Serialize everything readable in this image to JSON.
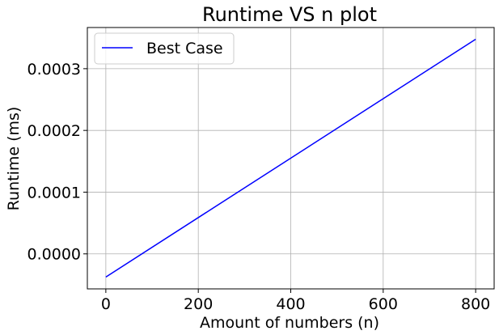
{
  "chart_data": {
    "type": "line",
    "title": "Runtime VS n plot",
    "xlabel": "Amount of numbers (n)",
    "ylabel": "Runtime (ms)",
    "xlim": [
      -40,
      840
    ],
    "ylim": [
      -5.67e-05,
      0.0003667
    ],
    "x_ticks": [
      0,
      200,
      400,
      600,
      800
    ],
    "x_tick_labels": [
      "0",
      "200",
      "400",
      "600",
      "800"
    ],
    "y_ticks": [
      0.0,
      0.0001,
      0.0002,
      0.0003
    ],
    "y_tick_labels": [
      "0.0000",
      "0.0001",
      "0.0002",
      "0.0003"
    ],
    "grid": true,
    "legend_position": "top-left",
    "series": [
      {
        "name": "Best Case",
        "color": "#0000ff",
        "x": [
          0,
          800
        ],
        "y": [
          -3.75e-05,
          0.0003477
        ]
      }
    ]
  }
}
